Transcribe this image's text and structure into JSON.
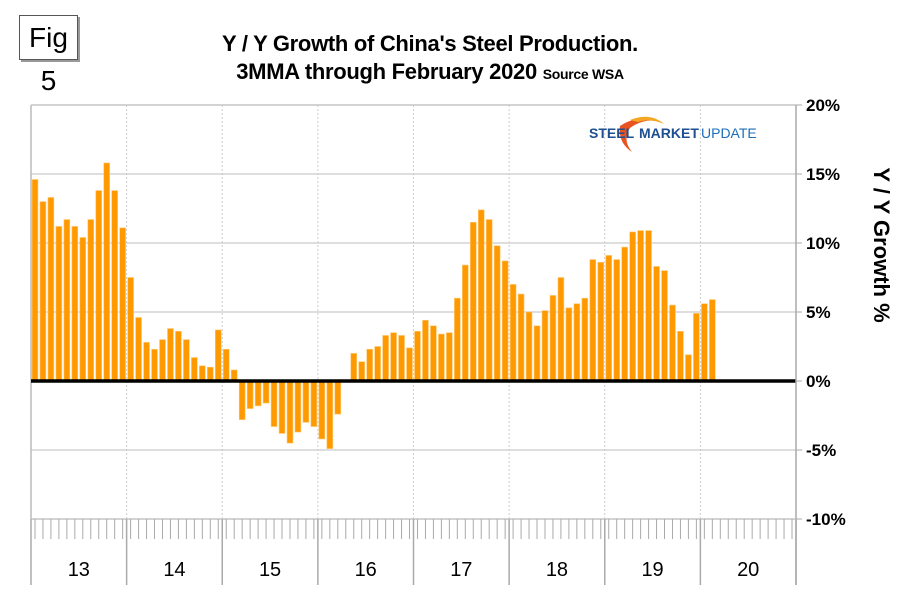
{
  "figure_label": "Fig 5",
  "chart_data": {
    "type": "bar",
    "title": "Y / Y Growth of China's Steel Production.",
    "subtitle": "3MMA through February 2020",
    "source_note": "Source WSA",
    "xlabel": "",
    "ylabel": "Y / Y Growth %",
    "ylim": [
      -10,
      20
    ],
    "yticks": [
      20,
      15,
      10,
      5,
      0,
      -5,
      -10
    ],
    "ytick_labels": [
      "20%",
      "15%",
      "10%",
      "5%",
      "0%",
      "-5%",
      "-10%"
    ],
    "x_groups": [
      "13",
      "14",
      "15",
      "16",
      "17",
      "18",
      "19",
      "20"
    ],
    "months_per_group": 12,
    "grid": true,
    "bar_color": "#ff9900",
    "zero_line_color": "#000000",
    "y_axis_position": "right",
    "series": [
      {
        "name": "Y/Y growth 3MMA",
        "start": "2013-01",
        "values": [
          14.6,
          13.0,
          13.3,
          11.2,
          11.7,
          11.2,
          10.4,
          11.7,
          13.8,
          15.8,
          13.8,
          11.1,
          7.5,
          4.6,
          2.8,
          2.3,
          3.0,
          3.8,
          3.6,
          3.0,
          1.7,
          1.1,
          1.0,
          3.7,
          2.3,
          0.8,
          -2.8,
          -2.0,
          -1.8,
          -1.6,
          -3.3,
          -3.8,
          -4.5,
          -3.7,
          -3.0,
          -3.3,
          -4.2,
          -4.9,
          -2.4,
          0.0,
          2.0,
          1.4,
          2.3,
          2.5,
          3.3,
          3.5,
          3.3,
          2.4,
          3.6,
          4.4,
          4.0,
          3.4,
          3.5,
          6.0,
          8.4,
          11.5,
          12.4,
          11.7,
          9.8,
          8.7,
          7.0,
          6.3,
          5.0,
          4.0,
          5.1,
          6.2,
          7.5,
          5.3,
          5.6,
          6.0,
          8.8,
          8.6,
          9.1,
          8.8,
          9.7,
          10.8,
          10.9,
          10.9,
          8.3,
          8.0,
          5.5,
          3.6,
          1.9,
          4.9,
          5.6,
          5.9
        ]
      }
    ]
  },
  "logo": {
    "part1": "STEEL",
    "part2": "MARKET",
    "part3": "UPDATE"
  }
}
